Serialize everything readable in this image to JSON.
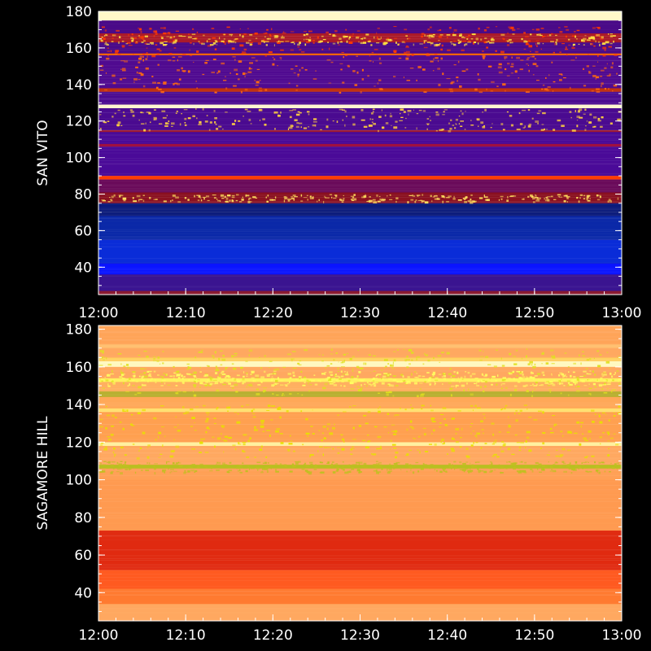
{
  "chart_data": [
    {
      "type": "heatmap",
      "station": "SAN VITO",
      "ylabel": "SAN VITO",
      "x_ticks": [
        "12:00",
        "12:10",
        "12:20",
        "12:30",
        "12:40",
        "12:50",
        "13:00"
      ],
      "xlim": [
        "12:00",
        "13:00"
      ],
      "y_ticks": [
        40,
        60,
        80,
        100,
        120,
        140,
        160,
        180
      ],
      "ylim": [
        25,
        180
      ],
      "colors": {
        "background": "#4a0a8a",
        "low_band": "#0a2ad8",
        "mid_band": "#8a1a20",
        "saturated": "#fff6c0",
        "hot": "#ff5a00"
      },
      "bands": [
        {
          "from": 25,
          "to": 27,
          "color": "#8a1a30"
        },
        {
          "from": 27,
          "to": 36,
          "color": "#3a1490"
        },
        {
          "from": 36,
          "to": 42,
          "color": "#0a14ff"
        },
        {
          "from": 42,
          "to": 55,
          "color": "#0a2cd8"
        },
        {
          "from": 55,
          "to": 68,
          "color": "#0a28a8"
        },
        {
          "from": 68,
          "to": 75,
          "color": "#0a1a7a"
        },
        {
          "from": 75,
          "to": 81,
          "color": "#8a1020"
        },
        {
          "from": 81,
          "to": 88,
          "color": "#6a0a5a"
        },
        {
          "from": 88,
          "to": 90,
          "color": "#ff3a00"
        },
        {
          "from": 90,
          "to": 106,
          "color": "#4a0a98"
        },
        {
          "from": 106,
          "to": 107.5,
          "color": "#a01040"
        },
        {
          "from": 107.5,
          "to": 114,
          "color": "#4a0a98"
        },
        {
          "from": 114,
          "to": 115,
          "color": "#a01a30"
        },
        {
          "from": 115,
          "to": 127,
          "color": "#4a0a90"
        },
        {
          "from": 127,
          "to": 129,
          "color": "#fff6d0"
        },
        {
          "from": 129,
          "to": 136,
          "color": "#4a0a90"
        },
        {
          "from": 136,
          "to": 138,
          "color": "#c03010"
        },
        {
          "from": 138,
          "to": 156,
          "color": "#500a90"
        },
        {
          "from": 156,
          "to": 157,
          "color": "#ff6a00"
        },
        {
          "from": 157,
          "to": 163,
          "color": "#4a0a88"
        },
        {
          "from": 163,
          "to": 168,
          "color": "#aa1a2a"
        },
        {
          "from": 168,
          "to": 175,
          "color": "#4a0a88"
        },
        {
          "from": 175,
          "to": 180,
          "color": "#fff8c8"
        }
      ]
    },
    {
      "type": "heatmap",
      "station": "SAGAMORE HILL",
      "ylabel": "SAGAMORE HILL",
      "x_ticks": [
        "12:00",
        "12:10",
        "12:20",
        "12:30",
        "12:40",
        "12:50",
        "13:00"
      ],
      "xlim": [
        "12:00",
        "13:00"
      ],
      "y_ticks": [
        40,
        60,
        80,
        100,
        120,
        140,
        160,
        180
      ],
      "ylim": [
        25,
        182
      ],
      "colors": {
        "background": "#ff9a50",
        "low_band": "#e02a10",
        "saturated": "#fff8c0",
        "speckle": "#e8e000"
      },
      "bands": [
        {
          "from": 25,
          "to": 34,
          "color": "#ffa860"
        },
        {
          "from": 34,
          "to": 42,
          "color": "#ff7a30"
        },
        {
          "from": 42,
          "to": 52,
          "color": "#ff5a20"
        },
        {
          "from": 52,
          "to": 73,
          "color": "#e02a10"
        },
        {
          "from": 73,
          "to": 74,
          "color": "#ff9a50"
        },
        {
          "from": 74,
          "to": 100,
          "color": "#ff9a50"
        },
        {
          "from": 100,
          "to": 106,
          "color": "#ffa055"
        },
        {
          "from": 106,
          "to": 108,
          "color": "#b8c020"
        },
        {
          "from": 108,
          "to": 118,
          "color": "#ffa860"
        },
        {
          "from": 118,
          "to": 120,
          "color": "#fff0a0"
        },
        {
          "from": 120,
          "to": 136,
          "color": "#ffa050"
        },
        {
          "from": 136,
          "to": 138,
          "color": "#ffe070"
        },
        {
          "from": 138,
          "to": 144,
          "color": "#ffa858"
        },
        {
          "from": 144,
          "to": 147,
          "color": "#b8b030"
        },
        {
          "from": 147,
          "to": 152,
          "color": "#ffb060"
        },
        {
          "from": 152,
          "to": 154,
          "color": "#fff060"
        },
        {
          "from": 154,
          "to": 160,
          "color": "#ffa860"
        },
        {
          "from": 160,
          "to": 163,
          "color": "#fff8c0"
        },
        {
          "from": 163,
          "to": 165,
          "color": "#ffd060"
        },
        {
          "from": 165,
          "to": 170,
          "color": "#ffa860"
        },
        {
          "from": 170,
          "to": 172,
          "color": "#ffc070"
        },
        {
          "from": 172,
          "to": 182,
          "color": "#ffa458"
        }
      ]
    }
  ]
}
